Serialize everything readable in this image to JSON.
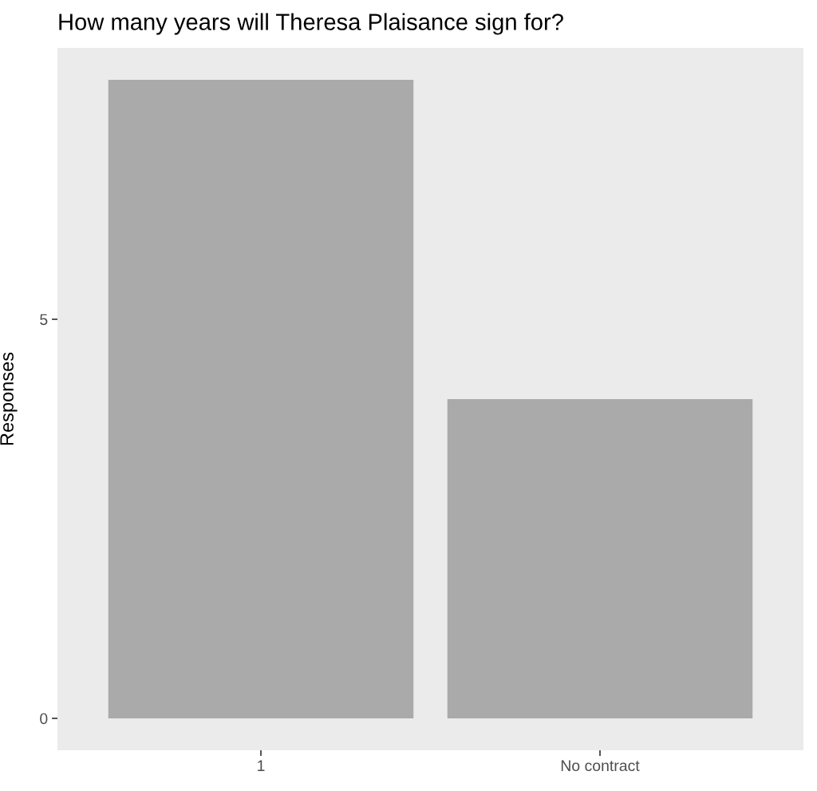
{
  "chart_data": {
    "type": "bar",
    "title": "How many years will Theresa Plaisance sign for?",
    "ylabel": "Responses",
    "categories": [
      "1",
      "No contract"
    ],
    "values": [
      8,
      4
    ],
    "color": "#aaaaaa",
    "ylim": [
      -0.4,
      8.4
    ],
    "yticks": [
      0,
      5
    ],
    "grid": false
  }
}
